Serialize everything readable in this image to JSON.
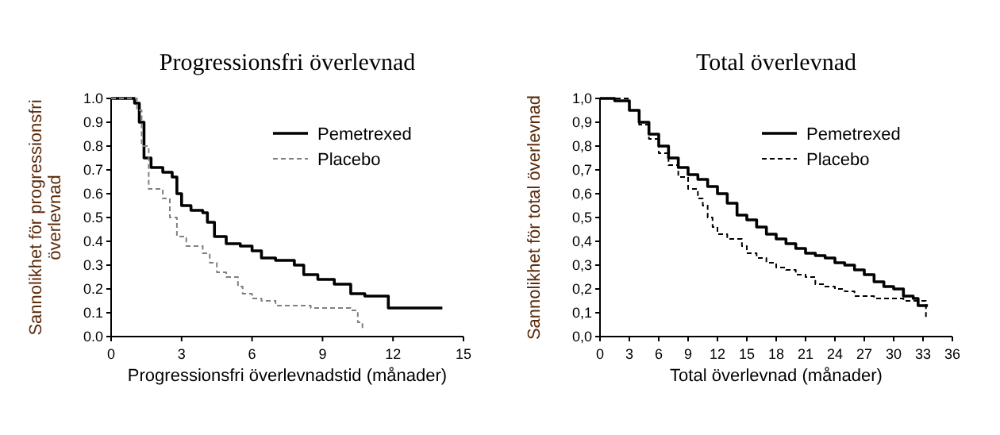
{
  "chart_data": [
    {
      "type": "step",
      "title": "Progressionsfri överlevnad",
      "xlabel": "Progressionsfri överlevnadstid (månader)",
      "ylabel": "Sannolikhet för progressionsfri överlevnad",
      "xlim": [
        0,
        15
      ],
      "xticks": [
        0,
        3,
        6,
        9,
        12,
        15
      ],
      "ylim": [
        0,
        1
      ],
      "yticks": [
        {
          "value": 0,
          "label": "0.0"
        },
        {
          "value": 0.1,
          "label": "0.1"
        },
        {
          "value": 0.2,
          "label": "0.2"
        },
        {
          "value": 0.3,
          "label": "0.3"
        },
        {
          "value": 0.4,
          "label": "0.4"
        },
        {
          "value": 0.5,
          "label": "0.5"
        },
        {
          "value": 0.6,
          "label": "0.6"
        },
        {
          "value": 0.7,
          "label": "0.7"
        },
        {
          "value": 0.8,
          "label": "0.8"
        },
        {
          "value": 0.9,
          "label": "0.9"
        },
        {
          "value": 1,
          "label": "1.0"
        }
      ],
      "legend": "top right",
      "series": [
        {
          "name": "Pemetrexed",
          "color": "#000000",
          "line_style": "solid",
          "x": [
            0,
            0.8,
            1.0,
            1.2,
            1.4,
            1.7,
            2.2,
            2.6,
            2.8,
            3.0,
            3.4,
            3.9,
            4.1,
            4.4,
            4.9,
            5.5,
            6.0,
            6.4,
            7.0,
            7.8,
            8.2,
            8.8,
            9.5,
            10.2,
            10.8,
            11.8,
            14.1
          ],
          "values": [
            1,
            1,
            0.98,
            0.9,
            0.75,
            0.71,
            0.69,
            0.67,
            0.6,
            0.55,
            0.53,
            0.52,
            0.48,
            0.42,
            0.39,
            0.38,
            0.36,
            0.33,
            0.32,
            0.3,
            0.26,
            0.24,
            0.22,
            0.18,
            0.17,
            0.12,
            0.12
          ]
        },
        {
          "name": "Placebo",
          "color": "#808080",
          "line_style": "dashed",
          "x": [
            0,
            1.1,
            1.3,
            1.6,
            2.2,
            2.5,
            2.8,
            3.2,
            3.9,
            4.2,
            4.5,
            4.9,
            5.4,
            5.6,
            6.0,
            6.4,
            7.0,
            8.5,
            10.2,
            10.5,
            10.7
          ],
          "values": [
            1,
            0.95,
            0.8,
            0.62,
            0.58,
            0.5,
            0.42,
            0.38,
            0.35,
            0.31,
            0.27,
            0.25,
            0.21,
            0.18,
            0.16,
            0.15,
            0.13,
            0.12,
            0.11,
            0.06,
            0.03
          ]
        }
      ]
    },
    {
      "type": "step",
      "title": "Total överlevnad",
      "xlabel": "Total överlevnad (månader)",
      "ylabel": "Sannolikhet för total överlevnad",
      "xlim": [
        0,
        36
      ],
      "xticks": [
        0,
        3,
        6,
        9,
        12,
        15,
        18,
        21,
        24,
        27,
        30,
        33,
        36
      ],
      "ylim": [
        0,
        1
      ],
      "yticks": [
        {
          "value": 0,
          "label": "0,0"
        },
        {
          "value": 0.1,
          "label": "0,1"
        },
        {
          "value": 0.2,
          "label": "0,2"
        },
        {
          "value": 0.3,
          "label": "0,3"
        },
        {
          "value": 0.4,
          "label": "0,4"
        },
        {
          "value": 0.5,
          "label": "0,5"
        },
        {
          "value": 0.6,
          "label": "0,6"
        },
        {
          "value": 0.7,
          "label": "0,7"
        },
        {
          "value": 0.8,
          "label": "0,8"
        },
        {
          "value": 0.9,
          "label": "0,9"
        },
        {
          "value": 1,
          "label": "1,0"
        }
      ],
      "legend": "top right",
      "series": [
        {
          "name": "Pemetrexed",
          "color": "#000000",
          "line_style": "solid",
          "x": [
            0,
            1.5,
            3,
            4,
            5,
            6,
            7,
            8,
            9,
            10,
            11,
            12,
            13,
            14,
            15,
            16,
            17,
            18,
            19,
            20,
            21,
            22,
            23,
            24,
            25,
            26,
            27,
            28,
            29,
            30,
            31,
            32,
            32.5,
            33.5
          ],
          "values": [
            1,
            0.99,
            0.95,
            0.9,
            0.85,
            0.8,
            0.75,
            0.71,
            0.68,
            0.66,
            0.63,
            0.6,
            0.56,
            0.51,
            0.49,
            0.46,
            0.43,
            0.41,
            0.39,
            0.37,
            0.35,
            0.34,
            0.33,
            0.31,
            0.3,
            0.28,
            0.26,
            0.23,
            0.21,
            0.2,
            0.17,
            0.16,
            0.13,
            0.13
          ]
        },
        {
          "name": "Placebo",
          "color": "#000000",
          "line_style": "dashed",
          "x": [
            0,
            3,
            4,
            5,
            6,
            7,
            8,
            9,
            10,
            10.5,
            11,
            11.5,
            12,
            13,
            14,
            14.5,
            15,
            16,
            17,
            18,
            19,
            20,
            21,
            22,
            23,
            24,
            25,
            26,
            28,
            30,
            31,
            33,
            33.3
          ],
          "values": [
            1,
            0.95,
            0.89,
            0.83,
            0.77,
            0.72,
            0.67,
            0.62,
            0.58,
            0.55,
            0.5,
            0.46,
            0.43,
            0.41,
            0.41,
            0.38,
            0.35,
            0.33,
            0.31,
            0.29,
            0.28,
            0.26,
            0.25,
            0.22,
            0.21,
            0.2,
            0.19,
            0.17,
            0.16,
            0.16,
            0.15,
            0.15,
            0.08
          ]
        }
      ]
    }
  ]
}
